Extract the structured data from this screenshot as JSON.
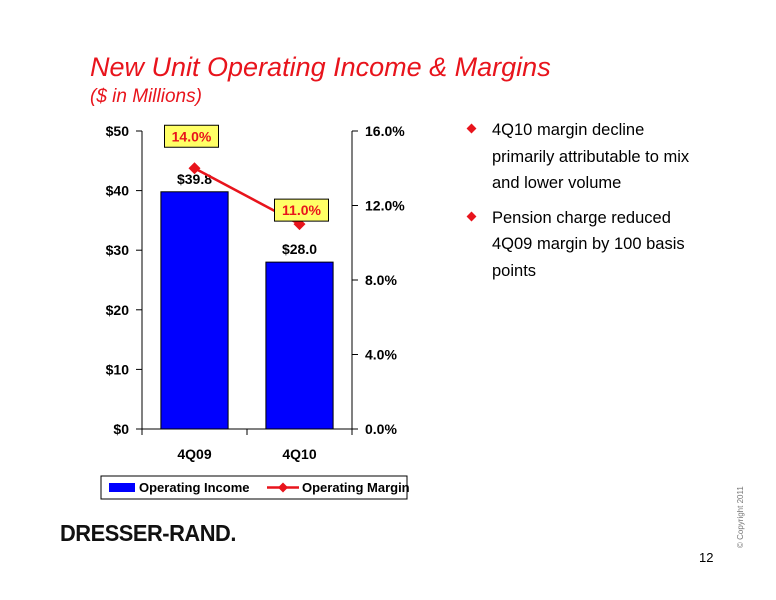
{
  "slide": {
    "title": "New Unit Operating Income & Margins",
    "subtitle": "($ in Millions)",
    "bullets": [
      "4Q10 margin decline primarily attributable to mix and lower volume",
      "Pension charge reduced 4Q09 margin by 100 basis points"
    ],
    "logo_text": "DRESSER-RAND.",
    "copyright": "© Copyright 2011",
    "page_number": "12"
  },
  "colors": {
    "accent": "#e8141c",
    "bar": "#0000ff",
    "line": "#e8141c",
    "label_box": "#ffff66"
  },
  "chart_data": {
    "type": "bar",
    "categories": [
      "4Q09",
      "4Q10"
    ],
    "series": [
      {
        "name": "Operating Income",
        "type": "bar",
        "axis": "left",
        "values": [
          39.8,
          28.0
        ],
        "labels": [
          "$39.8",
          "$28.0"
        ]
      },
      {
        "name": "Operating Margin",
        "type": "line",
        "axis": "right",
        "values": [
          14.0,
          11.0
        ],
        "labels": [
          "14.0%",
          "11.0%"
        ]
      }
    ],
    "y_left": {
      "ylim": [
        0,
        50
      ],
      "ticks": [
        0,
        10,
        20,
        30,
        40,
        50
      ],
      "tick_labels": [
        "$0",
        "$10",
        "$20",
        "$30",
        "$40",
        "$50"
      ]
    },
    "y_right": {
      "ylim": [
        0,
        16
      ],
      "ticks": [
        0,
        4,
        8,
        12,
        16
      ],
      "tick_labels": [
        "0.0%",
        "4.0%",
        "8.0%",
        "12.0%",
        "16.0%"
      ]
    },
    "grid": false,
    "legend": "bottom"
  }
}
